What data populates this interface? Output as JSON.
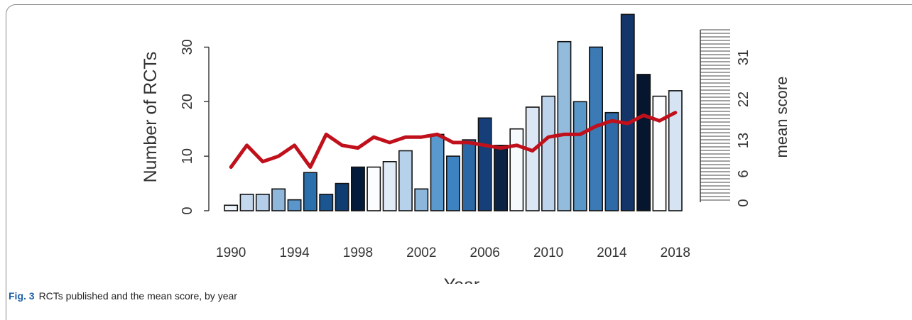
{
  "figure": {
    "caption_label": "Fig. 3",
    "caption_text": "RCTs published and the mean score, by year"
  },
  "chart_data": {
    "type": "bar",
    "x": [
      1990,
      1991,
      1992,
      1993,
      1994,
      1995,
      1996,
      1997,
      1998,
      1999,
      2000,
      2001,
      2002,
      2003,
      2004,
      2005,
      2006,
      2007,
      2008,
      2009,
      2010,
      2011,
      2012,
      2013,
      2014,
      2015,
      2016,
      2017,
      2018
    ],
    "x_tick_labels": [
      "1990",
      "1994",
      "1998",
      "2002",
      "2006",
      "2010",
      "2014",
      "2018"
    ],
    "xlabel": "Year",
    "ylabel": "Number of RCTs",
    "ylim": [
      0,
      35
    ],
    "y_ticks": [
      0,
      10,
      20,
      30
    ],
    "y2label": "mean score",
    "y2lim": [
      0,
      35
    ],
    "y2_ticks": [
      0,
      6,
      13,
      22,
      31
    ],
    "series": [
      {
        "type": "bar",
        "values": [
          1,
          3,
          3,
          4,
          2,
          7,
          3,
          5,
          8,
          8,
          9,
          11,
          4,
          14,
          10,
          13,
          17,
          12,
          15,
          19,
          21,
          31,
          20,
          30,
          18,
          36,
          25,
          21,
          22
        ],
        "colors": [
          "#eef4fb",
          "#c5d7ec",
          "#b4cde8",
          "#8fb6db",
          "#5a96cb",
          "#2c6fad",
          "#1c5691",
          "#0f3d72",
          "#041c3c",
          "#fbfdff",
          "#e1ebf6",
          "#b8d1ea",
          "#8cb6da",
          "#5a99cd",
          "#3d82c1",
          "#2a68a6",
          "#163f7a",
          "#0b2245",
          "#f7fafd",
          "#dbe7f5",
          "#bdd2eb",
          "#93bbdc",
          "#5a97c9",
          "#3b7ab4",
          "#2e6aa8",
          "#13356a",
          "#06162f",
          "#fcfdff",
          "#d5e3f3"
        ]
      },
      {
        "type": "line",
        "axis": "right",
        "color": "#c0101b",
        "values": [
          8,
          12,
          9,
          10,
          12,
          8,
          14,
          12,
          11.5,
          13.5,
          12.5,
          13.5,
          13.5,
          14,
          12.5,
          12.5,
          12,
          11.5,
          12,
          11,
          13.5,
          14,
          14,
          15.5,
          16.5,
          16,
          17.5,
          16.5,
          18
        ]
      }
    ]
  }
}
